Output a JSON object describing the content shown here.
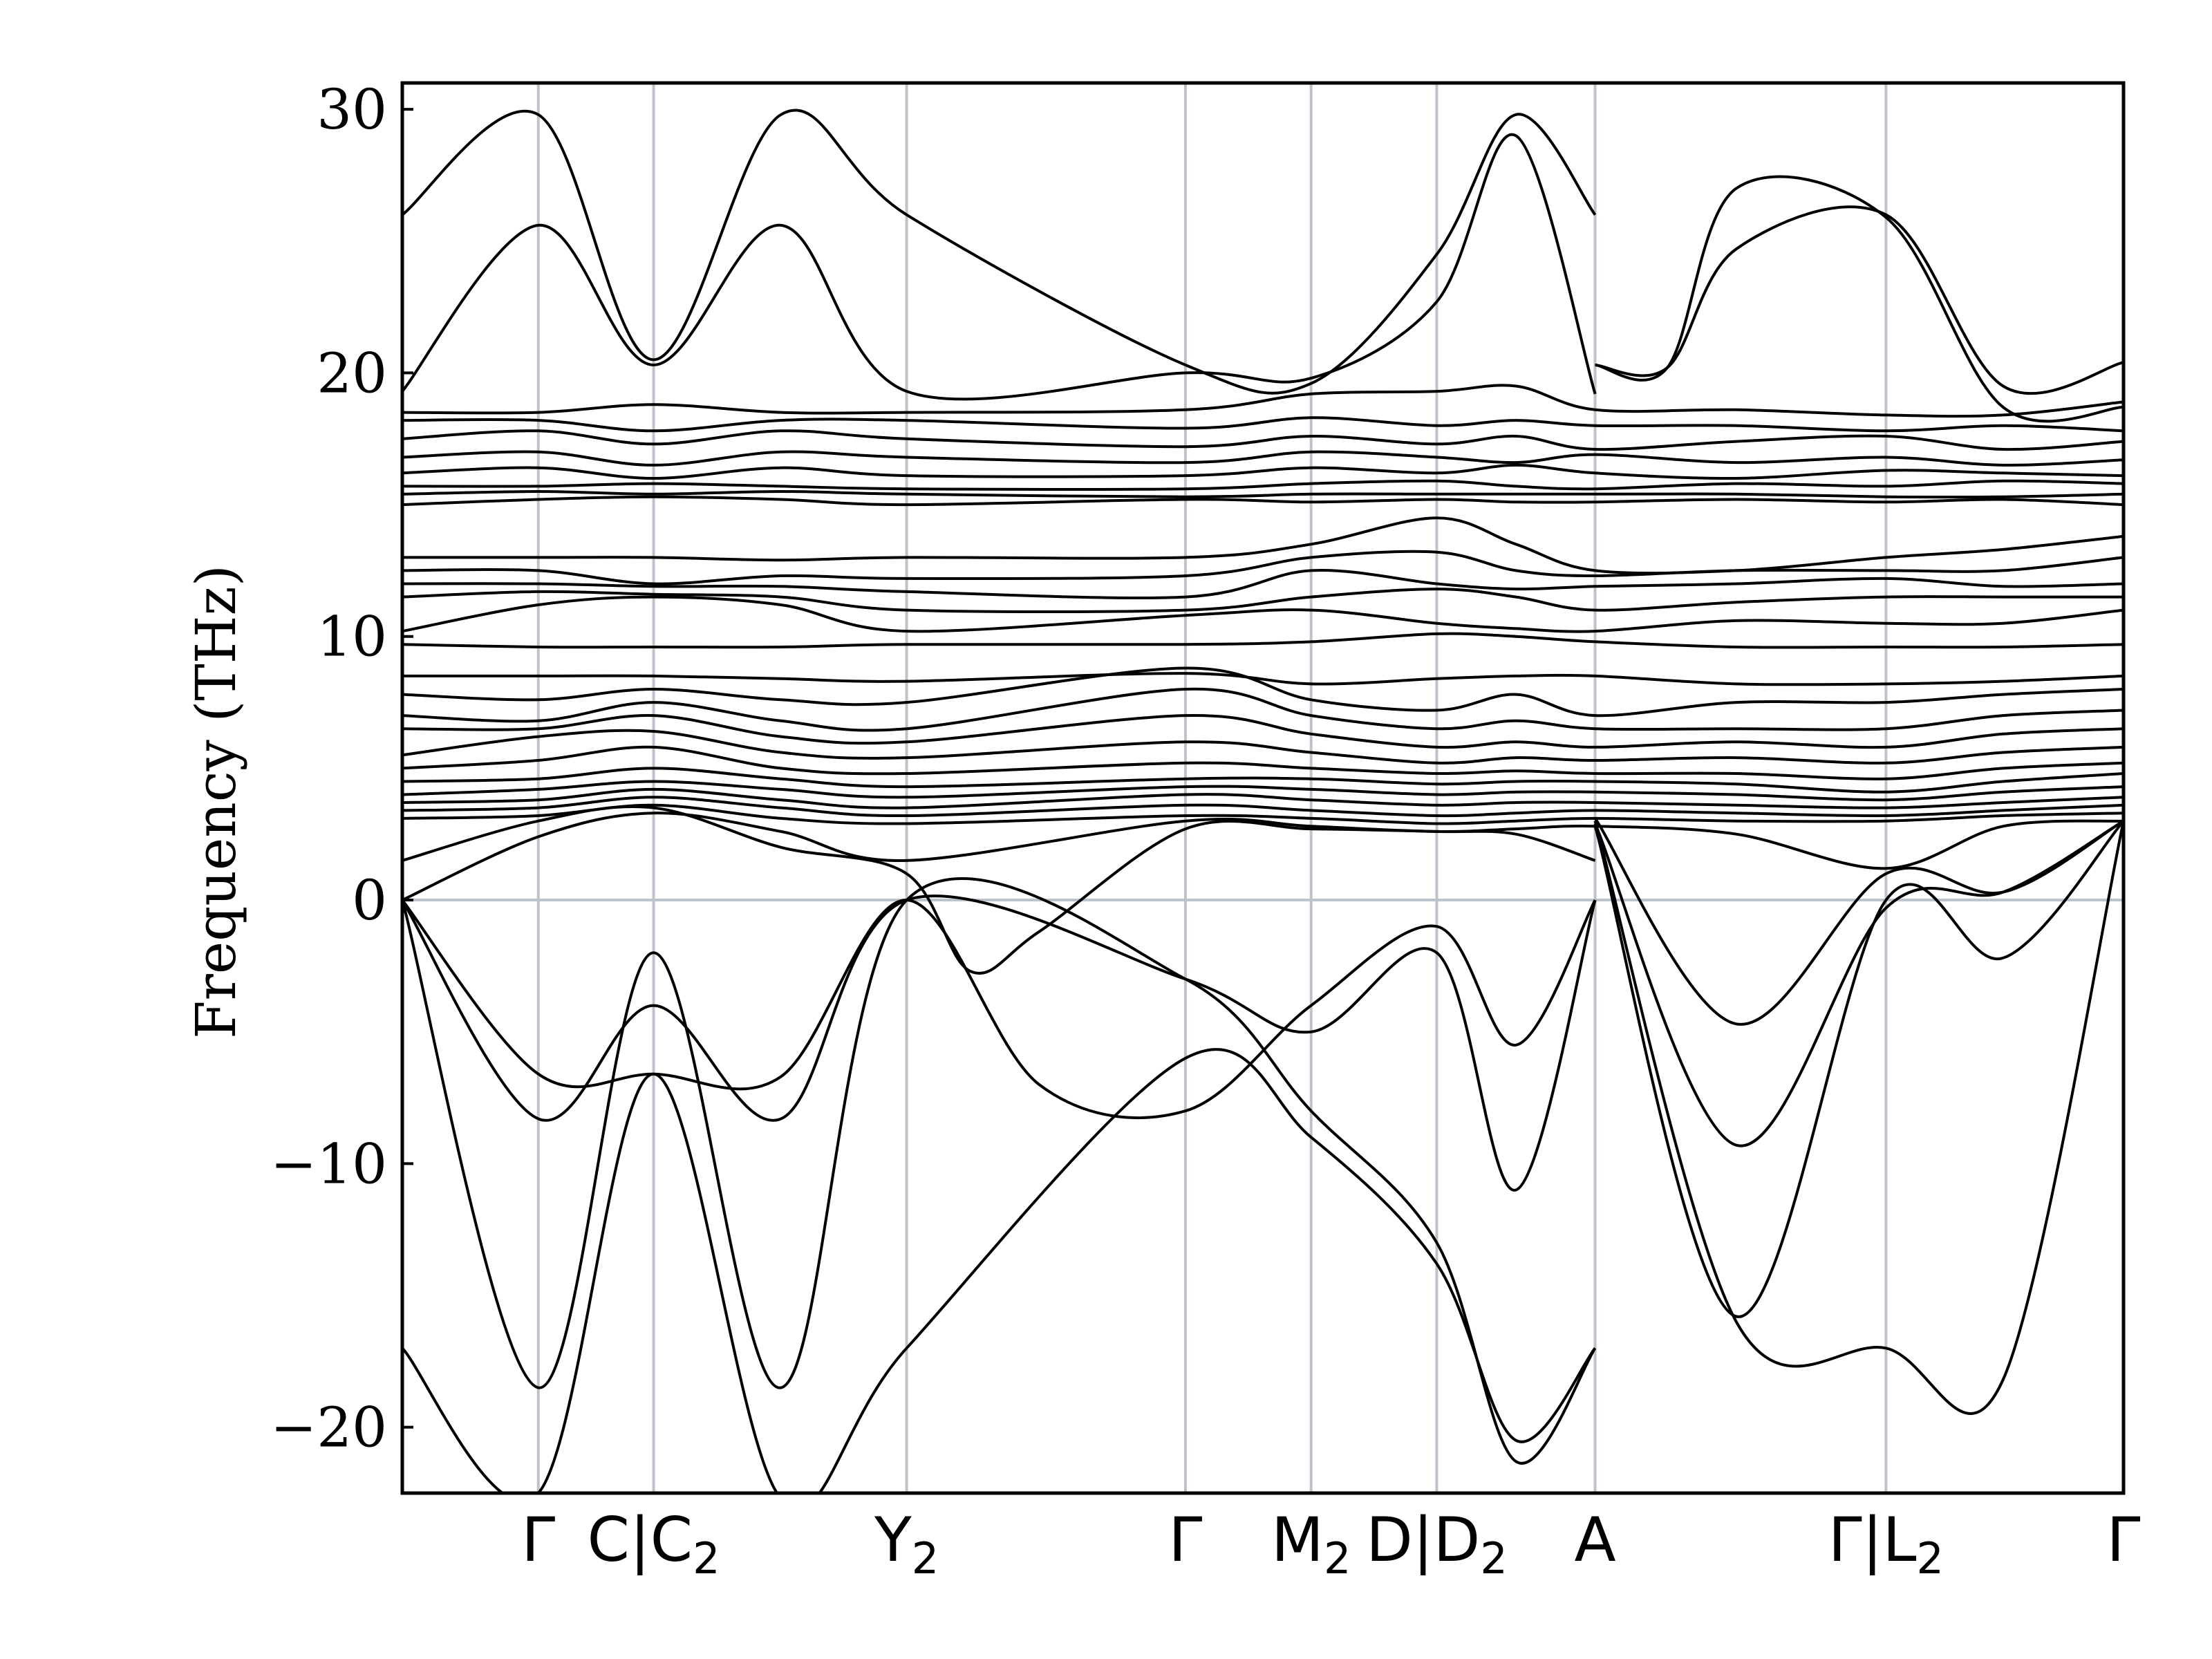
{
  "chart_data": {
    "type": "line",
    "ylabel": "Frequency (THz)",
    "ylim": [
      -22.5,
      31
    ],
    "yticks": [
      {
        "value": 30,
        "label": "30"
      },
      {
        "value": 20,
        "label": "20"
      },
      {
        "value": 10,
        "label": "10"
      },
      {
        "value": 0,
        "label": "0"
      },
      {
        "value": -10,
        "label": "−10"
      },
      {
        "value": -20,
        "label": "−20"
      }
    ],
    "xlim": [
      0,
      1
    ],
    "kpoints": [
      {
        "x": 0.079,
        "label": "Γ"
      },
      {
        "x": 0.146,
        "label": "C|C₂"
      },
      {
        "x": 0.293,
        "label": "Y₂"
      },
      {
        "x": 0.455,
        "label": "Γ"
      },
      {
        "x": 0.528,
        "label": "M₂"
      },
      {
        "x": 0.601,
        "label": "D|D₂"
      },
      {
        "x": 0.693,
        "label": "A"
      },
      {
        "x": 0.862,
        "label": "Γ|L₂"
      },
      {
        "x": 1.0,
        "label": "Γ"
      }
    ],
    "kpoint_line_positions": [
      0.079,
      0.146,
      0.293,
      0.455,
      0.528,
      0.601,
      0.693,
      0.862
    ],
    "zero_line": 0,
    "line_color": "#000000",
    "guide_color": "#bcc3cb",
    "bands": [
      {
        "x": [
          0,
          0.079,
          0.146,
          0.22,
          0.293,
          0.455,
          0.528,
          0.601,
          0.647,
          0.693
        ],
        "y": [
          -17,
          -22.5,
          -6.6,
          -22.7,
          -17,
          -6,
          -9,
          -13.8,
          -20.5,
          -17
        ]
      },
      {
        "x": [
          0,
          0.079,
          0.146,
          0.22,
          0.293,
          0.455,
          0.528,
          0.601,
          0.647,
          0.693
        ],
        "y": [
          0,
          -18.5,
          -2,
          -18.5,
          0,
          -3,
          -8,
          -13,
          -21.3,
          -17
        ]
      },
      {
        "x": [
          0,
          0.079,
          0.146,
          0.22,
          0.293,
          0.455,
          0.528,
          0.601,
          0.647,
          0.693
        ],
        "y": [
          0,
          -8.3,
          -4,
          -8.3,
          0,
          -3,
          -5,
          -2,
          -11,
          0
        ]
      },
      {
        "x": [
          0,
          0.079,
          0.146,
          0.22,
          0.293,
          0.37,
          0.455,
          0.528,
          0.601,
          0.647,
          0.693
        ],
        "y": [
          0,
          -6.6,
          -6.6,
          -6.7,
          0,
          -7,
          -8,
          -4,
          -1,
          -5.5,
          0
        ]
      },
      {
        "x": [
          0,
          0.079,
          0.146,
          0.22,
          0.293,
          0.33,
          0.37,
          0.455,
          0.528,
          0.601,
          0.647,
          0.693
        ],
        "y": [
          1.5,
          3,
          3.5,
          2,
          1,
          -2.7,
          -1.2,
          2.7,
          2.7,
          2.6,
          2.5,
          1.5
        ]
      },
      {
        "x": [
          0.693,
          0.775,
          0.862,
          0.93,
          1.0
        ],
        "y": [
          3,
          -16,
          -17,
          -18.2,
          3
        ]
      },
      {
        "x": [
          0.693,
          0.775,
          0.862,
          0.93,
          1.0
        ],
        "y": [
          2.8,
          -15.8,
          0,
          -2.2,
          3
        ]
      },
      {
        "x": [
          0.693,
          0.775,
          0.862,
          0.93,
          1.0
        ],
        "y": [
          2.9,
          -9.3,
          -0.3,
          0.3,
          3
        ]
      },
      {
        "x": [
          0.693,
          0.775,
          0.862,
          0.93,
          1.0
        ],
        "y": [
          3.1,
          -4.7,
          1,
          0.3,
          3
        ]
      },
      {
        "x": [
          0,
          0.079,
          0.146,
          0.22,
          0.293,
          0.455,
          0.528,
          0.601,
          0.647,
          0.693
        ],
        "y": [
          26,
          29.8,
          20.5,
          29.8,
          26,
          20.3,
          19.6,
          24.5,
          29.8,
          26
        ]
      },
      {
        "x": [
          0,
          0.079,
          0.146,
          0.22,
          0.293,
          0.455,
          0.528,
          0.601,
          0.647,
          0.693
        ],
        "y": [
          19.3,
          25.6,
          20.3,
          25.6,
          19.3,
          20,
          19.8,
          22.7,
          29,
          19.2
        ]
      },
      {
        "x": [
          0.693,
          0.735,
          0.775,
          0.862,
          0.93,
          1.0
        ],
        "y": [
          20.3,
          20.2,
          24.7,
          26,
          19.5,
          20.4
        ]
      },
      {
        "x": [
          0.693,
          0.735,
          0.775,
          0.862,
          0.93,
          1.0
        ],
        "y": [
          20.3,
          20.2,
          27,
          25.9,
          18.7,
          18.7
        ]
      },
      {
        "x": [
          0,
          0.079,
          0.146,
          0.22,
          0.293,
          0.455,
          0.528,
          0.601,
          0.647,
          0.693,
          0.775,
          0.862,
          0.93,
          1.0
        ],
        "y": [
          18.5,
          18.5,
          18.8,
          18.5,
          18.5,
          18.6,
          19.2,
          19.3,
          19.5,
          18.6,
          18.6,
          18.4,
          18.4,
          18.9
        ]
      },
      {
        "x": [
          0,
          0.079,
          0.146,
          0.22,
          0.293,
          0.455,
          0.528,
          0.601,
          0.647,
          0.693,
          0.775,
          0.862,
          0.93,
          1.0
        ],
        "y": [
          18.2,
          18.2,
          17.8,
          18.2,
          18.2,
          17.9,
          18.3,
          18.0,
          18.2,
          18.0,
          18.0,
          17.8,
          18.0,
          17.8
        ]
      },
      {
        "x": [
          0,
          0.079,
          0.146,
          0.22,
          0.293,
          0.455,
          0.528,
          0.601,
          0.647,
          0.693,
          0.775,
          0.862,
          0.93,
          1.0
        ],
        "y": [
          17.5,
          17.8,
          17.3,
          17.8,
          17.5,
          17.2,
          17.6,
          17.3,
          17.6,
          17.1,
          17.4,
          17.6,
          17.1,
          17.4
        ]
      },
      {
        "x": [
          0,
          0.079,
          0.146,
          0.22,
          0.293,
          0.455,
          0.528,
          0.601,
          0.647,
          0.693,
          0.775,
          0.862,
          0.93,
          1.0
        ],
        "y": [
          16.8,
          17.0,
          16.5,
          17.0,
          16.8,
          16.6,
          17.0,
          16.8,
          16.6,
          16.9,
          16.6,
          16.8,
          16.5,
          16.7
        ]
      },
      {
        "x": [
          0,
          0.079,
          0.146,
          0.22,
          0.293,
          0.455,
          0.528,
          0.601,
          0.647,
          0.693,
          0.775,
          0.862,
          0.93,
          1.0
        ],
        "y": [
          16.2,
          16.4,
          16.0,
          16.4,
          16.1,
          16.1,
          16.4,
          16.2,
          16.5,
          16.2,
          16.0,
          16.3,
          16.2,
          16.1
        ]
      },
      {
        "x": [
          0,
          0.079,
          0.146,
          0.22,
          0.293,
          0.455,
          0.528,
          0.601,
          0.647,
          0.693,
          0.775,
          0.862,
          0.93,
          1.0
        ],
        "y": [
          15.7,
          15.7,
          15.8,
          15.7,
          15.6,
          15.6,
          15.8,
          15.9,
          15.7,
          15.6,
          15.8,
          15.7,
          15.9,
          15.8
        ]
      },
      {
        "x": [
          0,
          0.079,
          0.146,
          0.22,
          0.293,
          0.455,
          0.528,
          0.601,
          0.647,
          0.693,
          0.775,
          0.862,
          0.93,
          1.0
        ],
        "y": [
          15.4,
          15.5,
          15.4,
          15.5,
          15.4,
          15.3,
          15.4,
          15.4,
          15.4,
          15.4,
          15.4,
          15.3,
          15.3,
          15.4
        ]
      },
      {
        "x": [
          0,
          0.079,
          0.146,
          0.22,
          0.293,
          0.455,
          0.528,
          0.601,
          0.647,
          0.693,
          0.775,
          0.862,
          0.93,
          1.0
        ],
        "y": [
          15.0,
          15.2,
          15.3,
          15.2,
          15.0,
          15.2,
          15.1,
          15.2,
          15.1,
          15.1,
          15.2,
          15.1,
          15.2,
          15.0
        ]
      },
      {
        "x": [
          0,
          0.079,
          0.146,
          0.22,
          0.293,
          0.455,
          0.528,
          0.601,
          0.647,
          0.693,
          0.775,
          0.862,
          0.93,
          1.0
        ],
        "y": [
          13.0,
          13.0,
          13.0,
          12.9,
          13.0,
          13.0,
          13.5,
          14.5,
          13.5,
          12.5,
          12.5,
          13.0,
          13.3,
          13.8
        ]
      },
      {
        "x": [
          0,
          0.079,
          0.146,
          0.22,
          0.293,
          0.455,
          0.528,
          0.601,
          0.647,
          0.693,
          0.775,
          0.862,
          0.93,
          1.0
        ],
        "y": [
          12.5,
          12.5,
          12.0,
          12.3,
          12.2,
          12.3,
          13.0,
          13.2,
          12.5,
          12.3,
          12.5,
          12.5,
          12.5,
          13.0
        ]
      },
      {
        "x": [
          0,
          0.079,
          0.146,
          0.22,
          0.293,
          0.455,
          0.528,
          0.601,
          0.647,
          0.693,
          0.775,
          0.862,
          0.93,
          1.0
        ],
        "y": [
          12.0,
          12.0,
          11.9,
          11.9,
          11.7,
          11.5,
          12.5,
          12.0,
          11.8,
          11.9,
          12.0,
          12.2,
          11.9,
          12.0
        ]
      },
      {
        "x": [
          0,
          0.079,
          0.146,
          0.22,
          0.293,
          0.455,
          0.528,
          0.601,
          0.647,
          0.693,
          0.775,
          0.862,
          0.93,
          1.0
        ],
        "y": [
          11.5,
          11.7,
          11.6,
          11.5,
          11.0,
          11.0,
          11.5,
          11.8,
          11.5,
          11.0,
          11.3,
          11.5,
          11.5,
          11.5
        ]
      },
      {
        "x": [
          0,
          0.079,
          0.146,
          0.22,
          0.293,
          0.455,
          0.528,
          0.601,
          0.647,
          0.693,
          0.775,
          0.862,
          0.93,
          1.0
        ],
        "y": [
          10.2,
          11.2,
          11.5,
          11.2,
          10.2,
          10.8,
          11.0,
          10.5,
          10.3,
          10.2,
          10.6,
          10.5,
          10.5,
          11.0
        ]
      },
      {
        "x": [
          0,
          0.079,
          0.146,
          0.22,
          0.293,
          0.455,
          0.528,
          0.601,
          0.647,
          0.693,
          0.775,
          0.862,
          0.93,
          1.0
        ],
        "y": [
          9.7,
          9.6,
          9.6,
          9.6,
          9.7,
          9.7,
          9.8,
          10.1,
          10.0,
          9.8,
          9.6,
          9.6,
          9.6,
          9.7
        ]
      },
      {
        "x": [
          0,
          0.079,
          0.146,
          0.22,
          0.293,
          0.455,
          0.528,
          0.601,
          0.647,
          0.693,
          0.775,
          0.862,
          0.93,
          1.0
        ],
        "y": [
          8.5,
          8.5,
          8.5,
          8.4,
          8.3,
          8.6,
          8.2,
          8.4,
          8.5,
          8.5,
          8.2,
          8.2,
          8.3,
          8.5
        ]
      },
      {
        "x": [
          0,
          0.079,
          0.146,
          0.22,
          0.293,
          0.455,
          0.528,
          0.601,
          0.647,
          0.693,
          0.775,
          0.862,
          0.93,
          1.0
        ],
        "y": [
          7.8,
          7.6,
          8.0,
          7.6,
          7.5,
          8.8,
          7.6,
          7.2,
          7.8,
          7.0,
          7.5,
          7.5,
          7.8,
          8.0
        ]
      },
      {
        "x": [
          0,
          0.079,
          0.146,
          0.22,
          0.293,
          0.455,
          0.528,
          0.601,
          0.647,
          0.693,
          0.775,
          0.862,
          0.93,
          1.0
        ],
        "y": [
          7.0,
          6.8,
          7.5,
          6.8,
          6.5,
          8.0,
          7.0,
          6.5,
          6.8,
          6.5,
          6.5,
          6.5,
          7.0,
          7.2
        ]
      },
      {
        "x": [
          0,
          0.079,
          0.146,
          0.22,
          0.293,
          0.455,
          0.528,
          0.601,
          0.647,
          0.693,
          0.775,
          0.862,
          0.93,
          1.0
        ],
        "y": [
          6.5,
          6.5,
          7.0,
          6.2,
          6.0,
          7.0,
          6.3,
          5.8,
          6.0,
          5.8,
          6.0,
          5.8,
          6.3,
          6.5
        ]
      },
      {
        "x": [
          0,
          0.079,
          0.146,
          0.22,
          0.293,
          0.455,
          0.528,
          0.601,
          0.647,
          0.693,
          0.775,
          0.862,
          0.93,
          1.0
        ],
        "y": [
          5.5,
          6.2,
          6.4,
          5.6,
          5.4,
          6.0,
          5.6,
          5.2,
          5.4,
          5.3,
          5.4,
          5.2,
          5.6,
          5.8
        ]
      },
      {
        "x": [
          0,
          0.079,
          0.146,
          0.22,
          0.293,
          0.455,
          0.528,
          0.601,
          0.647,
          0.693,
          0.775,
          0.862,
          0.93,
          1.0
        ],
        "y": [
          5.0,
          5.3,
          5.8,
          5.0,
          4.8,
          5.2,
          5.0,
          4.8,
          4.9,
          4.8,
          4.8,
          4.6,
          5.0,
          5.2
        ]
      },
      {
        "x": [
          0,
          0.079,
          0.146,
          0.22,
          0.293,
          0.455,
          0.528,
          0.601,
          0.647,
          0.693,
          0.775,
          0.862,
          0.93,
          1.0
        ],
        "y": [
          4.5,
          4.6,
          5.0,
          4.6,
          4.3,
          4.6,
          4.6,
          4.4,
          4.5,
          4.5,
          4.4,
          4.1,
          4.5,
          4.8
        ]
      },
      {
        "x": [
          0,
          0.079,
          0.146,
          0.22,
          0.293,
          0.455,
          0.528,
          0.601,
          0.647,
          0.693,
          0.775,
          0.862,
          0.93,
          1.0
        ],
        "y": [
          4.0,
          4.2,
          4.5,
          4.2,
          3.9,
          4.3,
          4.2,
          4.0,
          4.1,
          4.1,
          4.0,
          3.8,
          4.1,
          4.3
        ]
      },
      {
        "x": [
          0,
          0.079,
          0.146,
          0.22,
          0.293,
          0.455,
          0.528,
          0.601,
          0.647,
          0.693,
          0.775,
          0.862,
          0.93,
          1.0
        ],
        "y": [
          3.7,
          3.8,
          4.2,
          3.8,
          3.5,
          4.0,
          3.8,
          3.6,
          3.7,
          3.7,
          3.6,
          3.5,
          3.7,
          3.9
        ]
      },
      {
        "x": [
          0,
          0.079,
          0.146,
          0.22,
          0.293,
          0.455,
          0.528,
          0.601,
          0.647,
          0.693,
          0.775,
          0.862,
          0.93,
          1.0
        ],
        "y": [
          3.4,
          3.5,
          3.9,
          3.5,
          3.2,
          3.6,
          3.4,
          3.2,
          3.3,
          3.4,
          3.3,
          3.2,
          3.4,
          3.6
        ]
      },
      {
        "x": [
          0,
          0.079,
          0.146,
          0.22,
          0.293,
          0.455,
          0.528,
          0.601,
          0.647,
          0.693,
          0.775,
          0.862,
          0.93,
          1.0
        ],
        "y": [
          3.1,
          3.2,
          3.6,
          3.1,
          2.9,
          3.2,
          3.1,
          2.9,
          3.0,
          3.1,
          3.0,
          3.0,
          3.2,
          3.3
        ]
      },
      {
        "x": [
          0,
          0.079,
          0.146,
          0.22,
          0.293,
          0.455,
          0.528,
          0.601,
          0.647,
          0.693,
          0.775,
          0.862,
          0.93,
          1.0
        ],
        "y": [
          0,
          2.4,
          3.3,
          2.6,
          1.5,
          3.0,
          2.8,
          2.6,
          2.7,
          2.8,
          2.5,
          1.2,
          2.8,
          3.0
        ]
      }
    ]
  }
}
